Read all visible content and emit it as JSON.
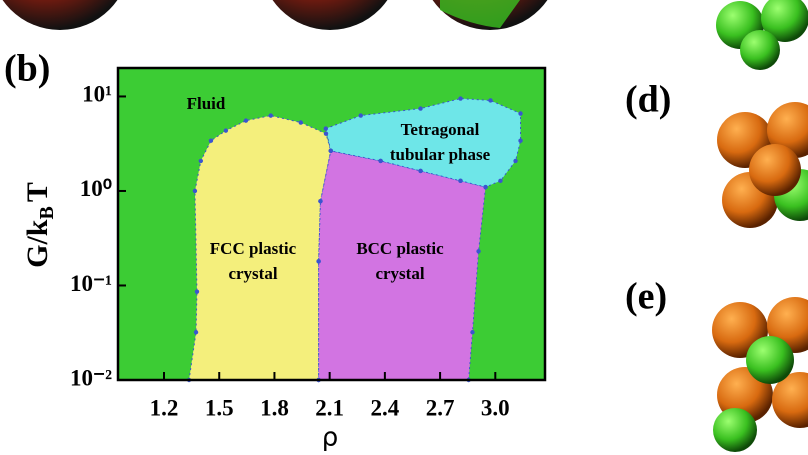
{
  "chart_data": {
    "type": "area",
    "panel_labels": [
      "(b)",
      "(d)",
      "(e)"
    ],
    "xlabel": "ρ",
    "ylabel_parts": [
      "G/k",
      "B",
      "T"
    ],
    "xlim": [
      0.95,
      3.27
    ],
    "xticks": [
      1.2,
      1.5,
      1.8,
      2.1,
      2.4,
      2.7,
      {
        "value": 3,
        "label": "3.0"
      }
    ],
    "ylim": [
      0.01,
      20
    ],
    "log_y": true,
    "yticks": [
      {
        "value": 0.01,
        "label": "10⁻²"
      },
      {
        "value": 0.1,
        "label": "10⁻¹"
      },
      {
        "value": 1,
        "label": "10⁰"
      },
      {
        "value": 10,
        "label": "10¹"
      }
    ],
    "background": {
      "label": "Fluid",
      "color": "#3ccc34"
    },
    "boundary_color": "#3a55d0",
    "regions": [
      {
        "label": [
          "FCC plastic",
          "crystal"
        ],
        "color": "#f4ef7c",
        "x": [
          1.336,
          1.374,
          1.379,
          1.368,
          1.4,
          1.455,
          1.536,
          1.645,
          1.78,
          1.943,
          2.08,
          2.106,
          2.05,
          2.04,
          2.04
        ],
        "y": [
          0.01,
          0.032,
          0.086,
          1,
          2.08,
          3.4,
          4.35,
          5.55,
          6.27,
          5.3,
          4.04,
          2.66,
          0.78,
          0.18,
          0.01
        ]
      },
      {
        "label": [
          "BCC  plastic",
          "crystal"
        ],
        "color": "#d274e2",
        "x": [
          2.04,
          2.04,
          2.05,
          2.106,
          2.377,
          2.594,
          2.811,
          2.947,
          2.909,
          2.876,
          2.855
        ],
        "y": [
          0.01,
          0.18,
          0.78,
          2.66,
          2.08,
          1.63,
          1.28,
          1.1,
          0.23,
          0.032,
          0.01
        ]
      },
      {
        "label": [
          "Tetragonal",
          "tubular phase"
        ],
        "color": "#6ee6e8",
        "x": [
          2.079,
          2.269,
          2.594,
          2.811,
          2.974,
          3.137,
          3.137,
          3.11,
          3.028,
          2.947,
          2.811,
          2.594,
          2.377,
          2.106
        ],
        "y": [
          4.57,
          6.28,
          7.45,
          9.5,
          9.07,
          6.6,
          3.4,
          2.08,
          1.28,
          1.1,
          1.28,
          1.63,
          2.08,
          2.66
        ]
      }
    ]
  }
}
